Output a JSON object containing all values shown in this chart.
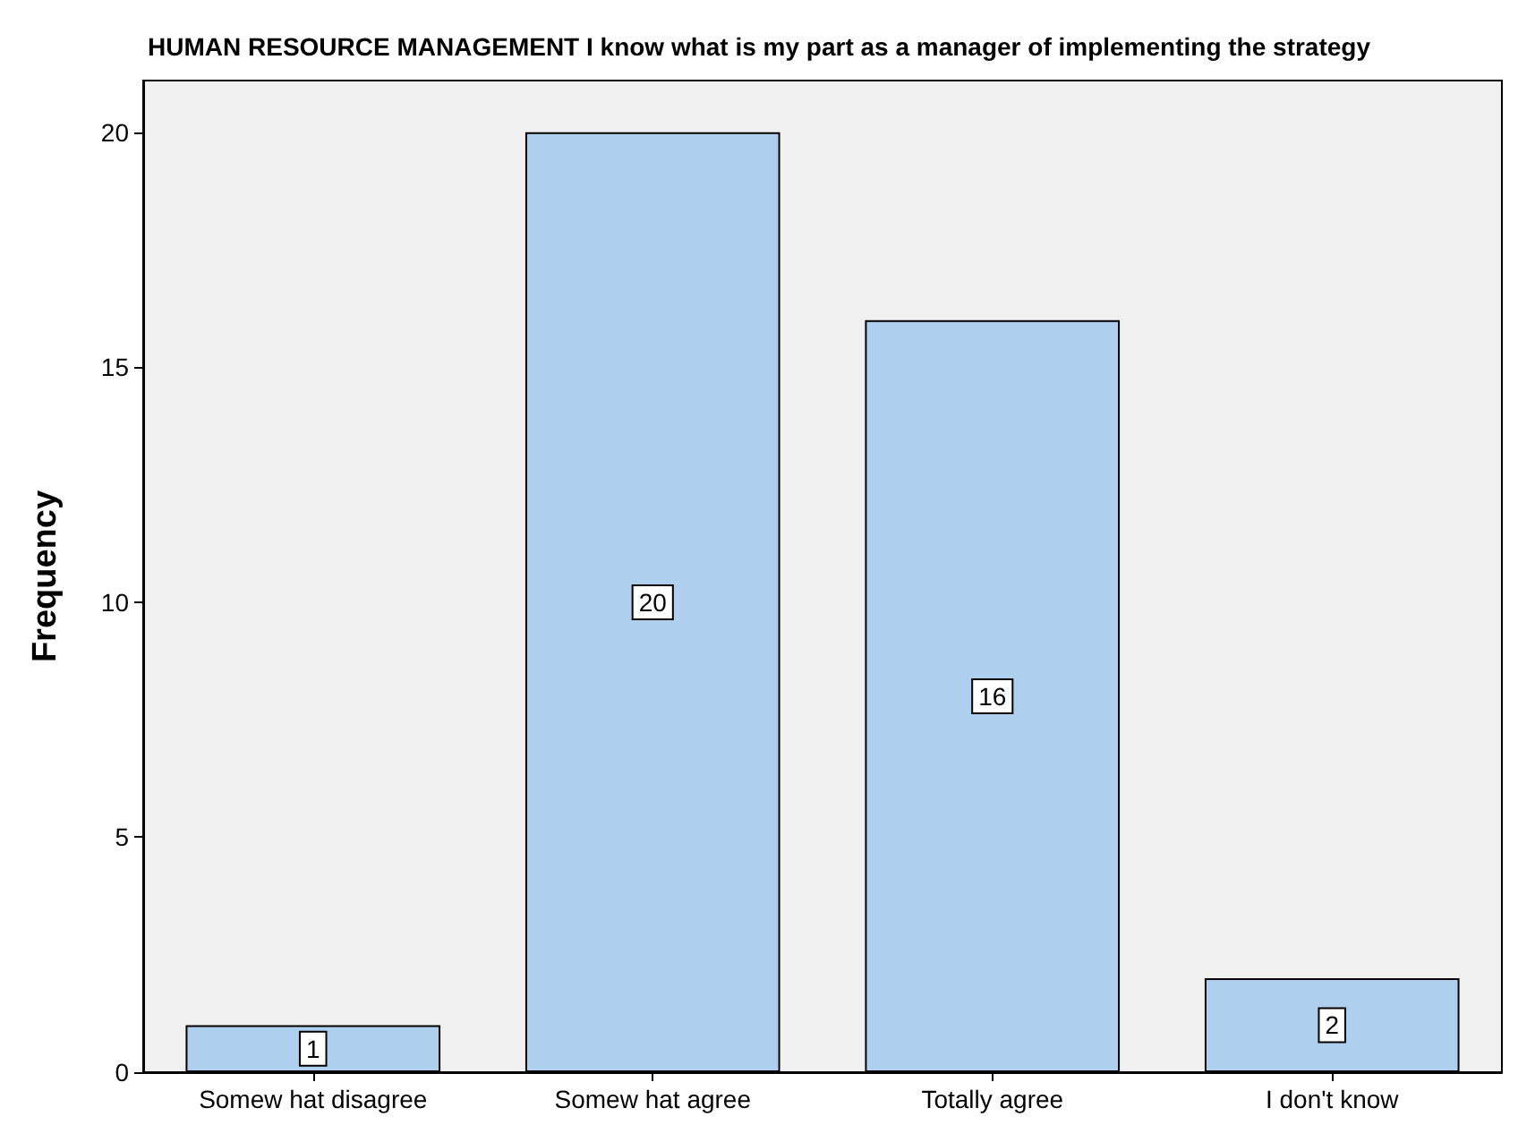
{
  "chart_data": {
    "type": "bar",
    "title": "HUMAN RESOURCE MANAGEMENT I know what is my part as a manager of implementing the strategy",
    "ylabel": "Frequency",
    "categories": [
      "Somew hat disagree",
      "Somew hat agree",
      "Totally agree",
      "I don't know"
    ],
    "values": [
      1,
      20,
      16,
      2
    ],
    "color": "#aed0ee",
    "ylim": [
      0,
      21.1
    ],
    "yticks": [
      0,
      5,
      10,
      15,
      20
    ],
    "data_labels": true,
    "grid": false
  }
}
